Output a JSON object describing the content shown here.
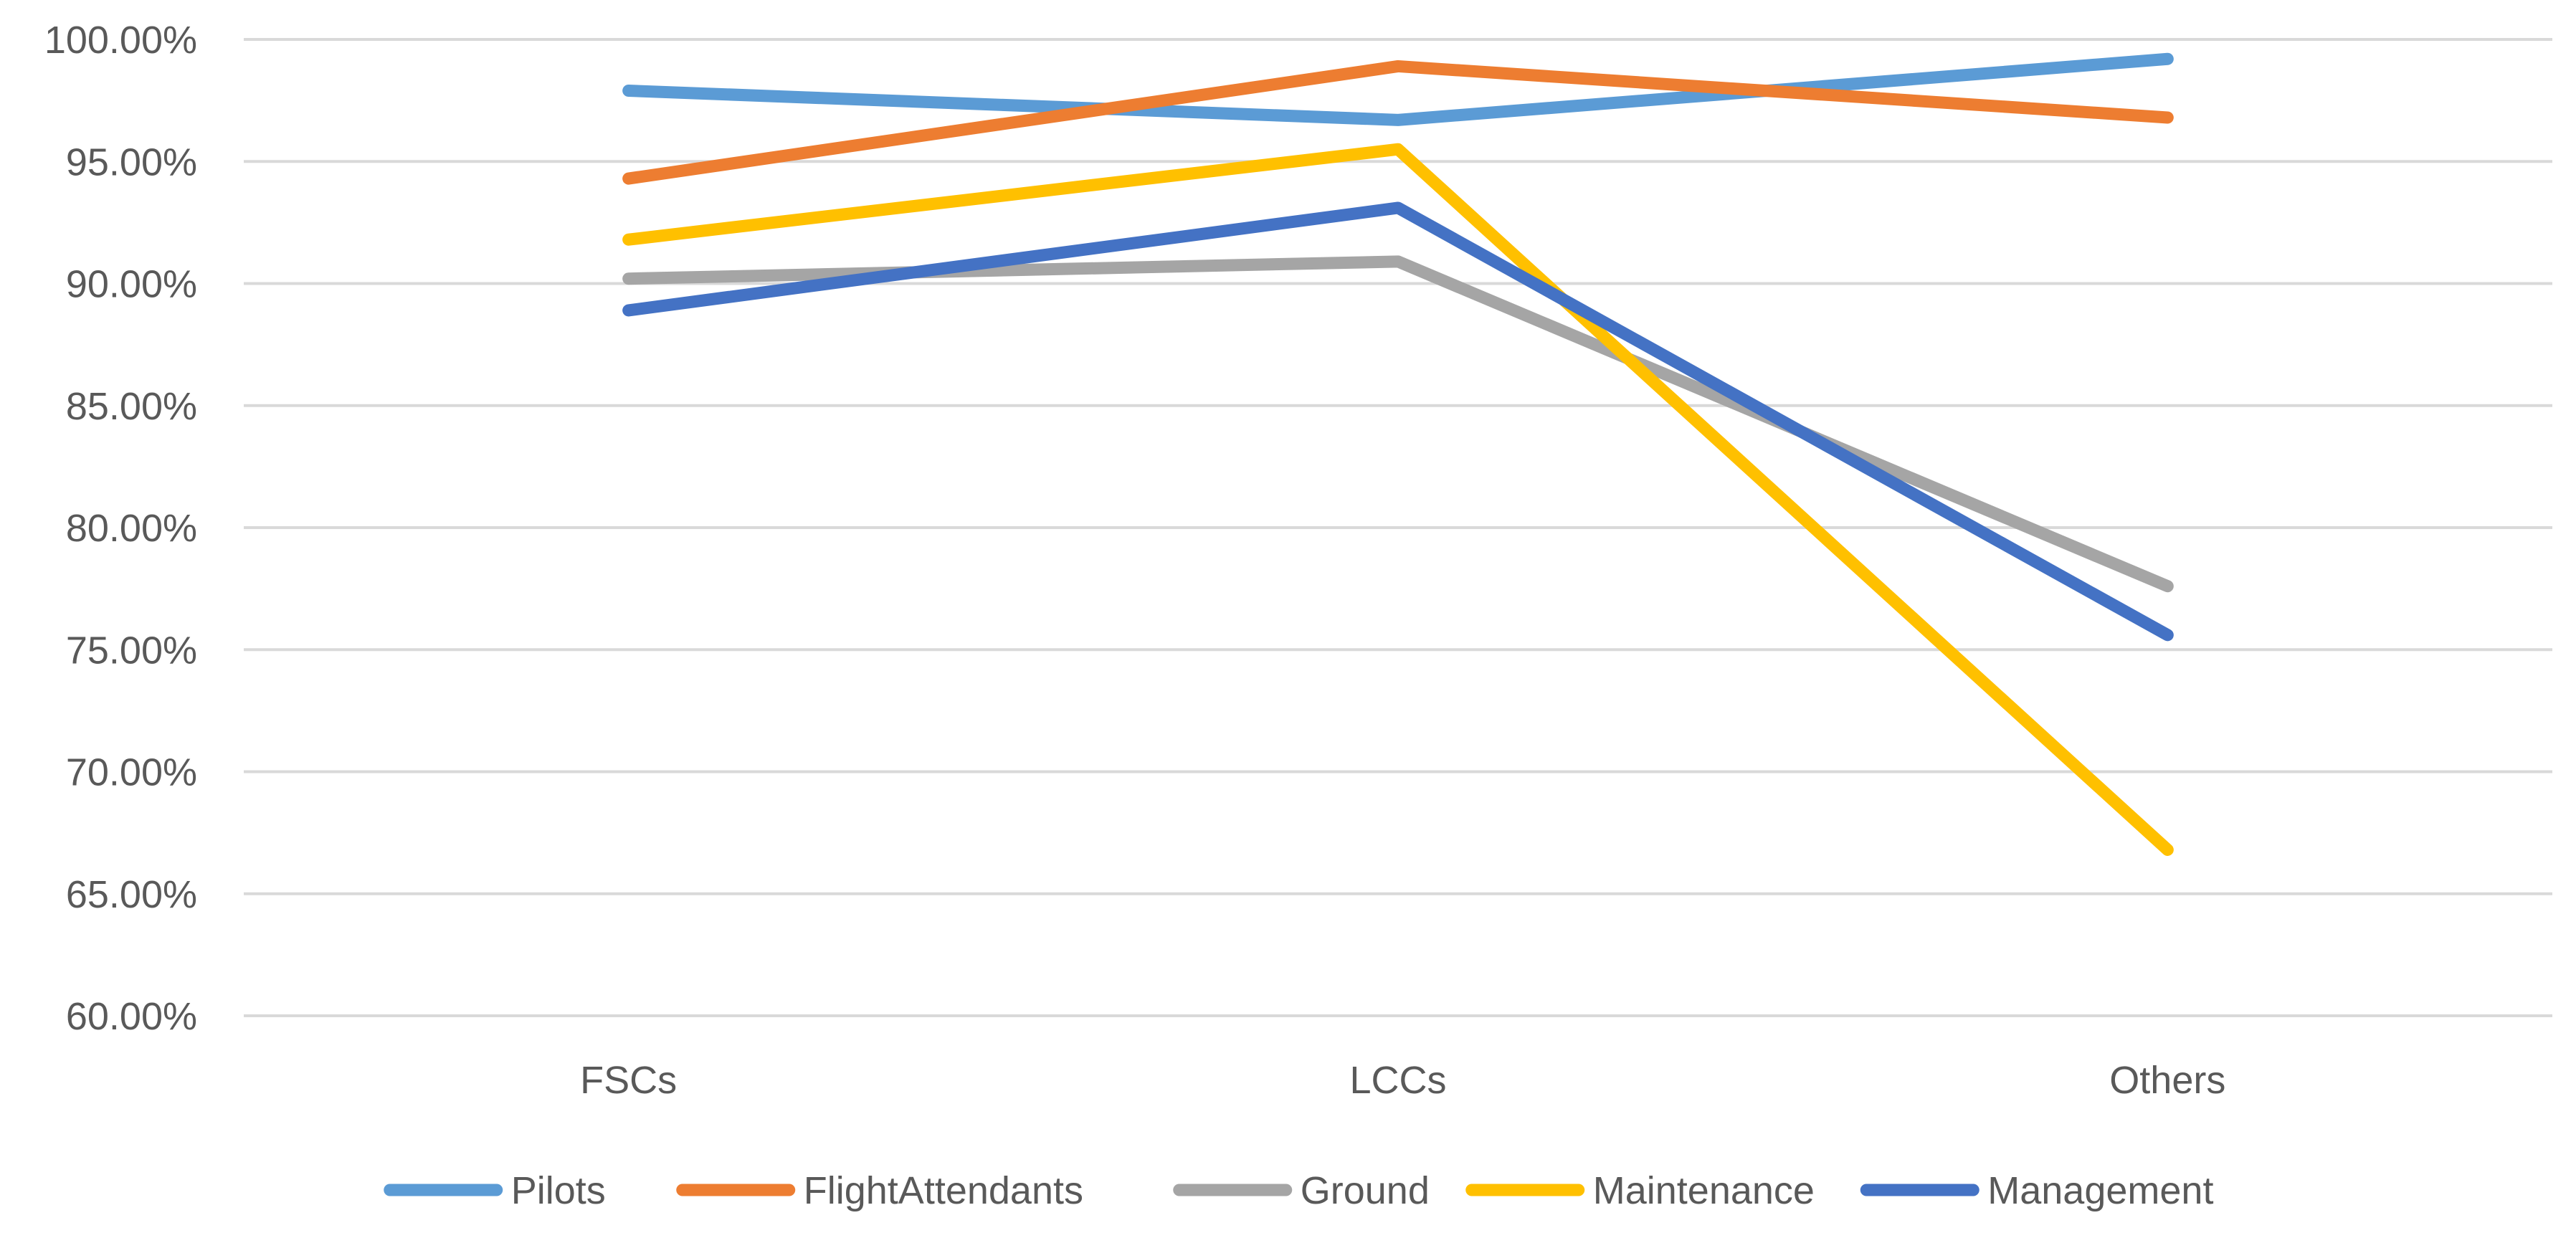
{
  "chart_data": {
    "type": "line",
    "title": "",
    "xlabel": "",
    "ylabel": "",
    "categories": [
      "FSCs",
      "LCCs",
      "Others"
    ],
    "ylim": [
      0.6,
      1.0
    ],
    "ytick_values": [
      0.6,
      0.65,
      0.7,
      0.75,
      0.8,
      0.85,
      0.9,
      0.95,
      1.0
    ],
    "ytick_labels": [
      "60.00%",
      "65.00%",
      "70.00%",
      "75.00%",
      "80.00%",
      "85.00%",
      "90.00%",
      "95.00%",
      "100.00%"
    ],
    "grid": true,
    "legend_position": "bottom",
    "series": [
      {
        "name": "Pilots",
        "color": "#5B9BD5",
        "values": [
          0.979,
          0.967,
          0.992
        ]
      },
      {
        "name": "FlightAttendants",
        "color": "#ED7D31",
        "values": [
          0.943,
          0.989,
          0.968
        ]
      },
      {
        "name": "Ground",
        "color": "#A5A5A5",
        "values": [
          0.902,
          0.909,
          0.776
        ]
      },
      {
        "name": "Maintenance",
        "color": "#FFC000",
        "values": [
          0.918,
          0.955,
          0.668
        ]
      },
      {
        "name": "Management",
        "color": "#4472C4",
        "values": [
          0.889,
          0.931,
          0.756
        ]
      }
    ]
  }
}
